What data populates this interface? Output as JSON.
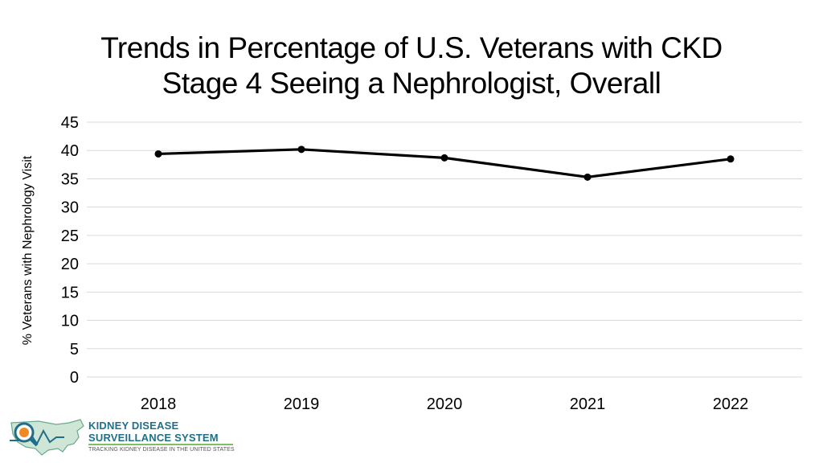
{
  "chart_data": {
    "type": "line",
    "title_lines": [
      "Trends in Percentage of U.S. Veterans with CKD",
      "Stage 4 Seeing a Nephrologist, Overall"
    ],
    "xlabel": "",
    "ylabel": "% Veterans with Nephrology Visit",
    "categories": [
      "2018",
      "2019",
      "2020",
      "2021",
      "2022"
    ],
    "series": [
      {
        "name": "Overall",
        "values": [
          39.4,
          40.2,
          38.7,
          35.3,
          38.5
        ]
      }
    ],
    "ylim": [
      0,
      45
    ],
    "yticks": [
      0,
      5,
      10,
      15,
      20,
      25,
      30,
      35,
      40,
      45
    ],
    "grid": true,
    "legend": "none",
    "colors": {
      "line": "#000000",
      "grid": "#d9d9d9",
      "text": "#000000"
    }
  },
  "logo": {
    "line1": "KIDNEY DISEASE",
    "line2": "SURVEILLANCE SYSTEM",
    "line3": "TRACKING KIDNEY DISEASE IN THE UNITED STATES",
    "colors": {
      "primary": "#1f6f8b",
      "accent": "#7fbf5f",
      "orange": "#f08a24"
    }
  }
}
